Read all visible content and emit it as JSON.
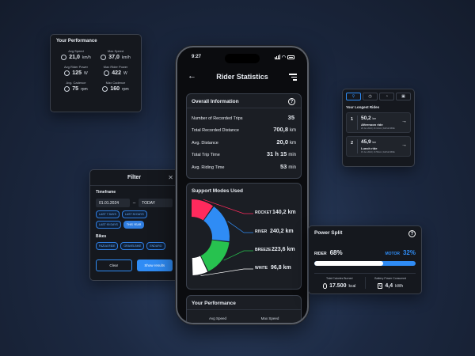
{
  "performance_card": {
    "title": "Your Performance",
    "metrics": [
      {
        "label": "Avg Speed",
        "value": "21,0",
        "unit": "km/h",
        "icon": "speedometer-icon"
      },
      {
        "label": "Max Speed",
        "value": "37,0",
        "unit": "km/h",
        "icon": "speedometer-icon"
      },
      {
        "label": "Avg Rider Power",
        "value": "125",
        "unit": "W",
        "icon": "power-icon"
      },
      {
        "label": "Max Rider Power",
        "value": "422",
        "unit": "W",
        "icon": "power-icon"
      },
      {
        "label": "Avg. Cadence",
        "value": "75",
        "unit": "rpm",
        "icon": "cadence-icon"
      },
      {
        "label": "Max Cadence",
        "value": "160",
        "unit": "rpm",
        "icon": "cadence-icon"
      }
    ]
  },
  "filter": {
    "title": "Filter",
    "timeframe_label": "Timeframe",
    "date_from": "01.01.2024",
    "date_to": "TODAY",
    "timeframe_chips": [
      "LAST 7 DAYS",
      "LAST 30 DAYS",
      "LAST 90 DAYS",
      "THIS YEAR"
    ],
    "bikes_label": "Bikes",
    "bike_chips": [
      "FAZUA RIDE",
      "GRAVELBIKE",
      "ENDURO"
    ],
    "clear_label": "Clear",
    "show_label": "Show results"
  },
  "phone": {
    "time": "9:27",
    "title": "Rider Statistics",
    "overall": {
      "title": "Overall Information",
      "rows": [
        {
          "label": "Number of Recorded Trips",
          "value": "35",
          "unit": ""
        },
        {
          "label": "Total Recorded Distance",
          "value": "700,8",
          "unit": "km"
        },
        {
          "label": "Avg. Distance",
          "value": "20,0",
          "unit": "km"
        },
        {
          "label": "Total Trip Time",
          "value": "31 h 15",
          "unit": "min"
        },
        {
          "label": "Avg. Riding Time",
          "value": "53",
          "unit": "min"
        }
      ]
    },
    "modes": {
      "title": "Support Modes Used",
      "items": [
        {
          "name": "ROCKET",
          "value": "140,2",
          "unit": "km",
          "color": "#ff2a5d"
        },
        {
          "name": "RIVER",
          "value": "240,2",
          "unit": "km",
          "color": "#2f8cf5"
        },
        {
          "name": "BREEZE",
          "value": "223,6",
          "unit": "km",
          "color": "#27c24f"
        },
        {
          "name": "WHITE",
          "value": "96,8",
          "unit": "km",
          "color": "#ffffff"
        }
      ]
    },
    "performance": {
      "title": "Your Performance",
      "col1": "Avg Speed",
      "col2": "Max Speed"
    }
  },
  "rides": {
    "tabs": [
      "bike-icon",
      "clock-icon",
      "gauge-icon",
      "lock-icon"
    ],
    "title": "Your Longest Rides",
    "items": [
      {
        "num": "1",
        "distance": "50,2",
        "unit": "km",
        "name": "Afternoon ride",
        "meta": "28 Jun 2024 | 2h 12min | FAZUA RIDE"
      },
      {
        "num": "2",
        "distance": "45,9",
        "unit": "km",
        "name": "Lunch ride",
        "meta": "15 Jun 2024 | 1h 59min | FAZUA RIDE"
      }
    ]
  },
  "power_split": {
    "title": "Power Split",
    "rider_label": "RIDER",
    "rider_pct": "68",
    "motor_label": "MOTOR",
    "motor_pct": "32",
    "rider_fraction": 0.68,
    "calories_label": "Total Calories Burned",
    "calories_value": "17.500",
    "calories_unit": "kcal",
    "battery_label": "Battery Power Consumed",
    "battery_value": "4,4",
    "battery_unit": "kWh"
  },
  "colors": {
    "accent": "#2f8cf5",
    "rocket": "#ff2a5d",
    "river": "#2f8cf5",
    "breeze": "#27c24f",
    "white": "#ffffff"
  }
}
